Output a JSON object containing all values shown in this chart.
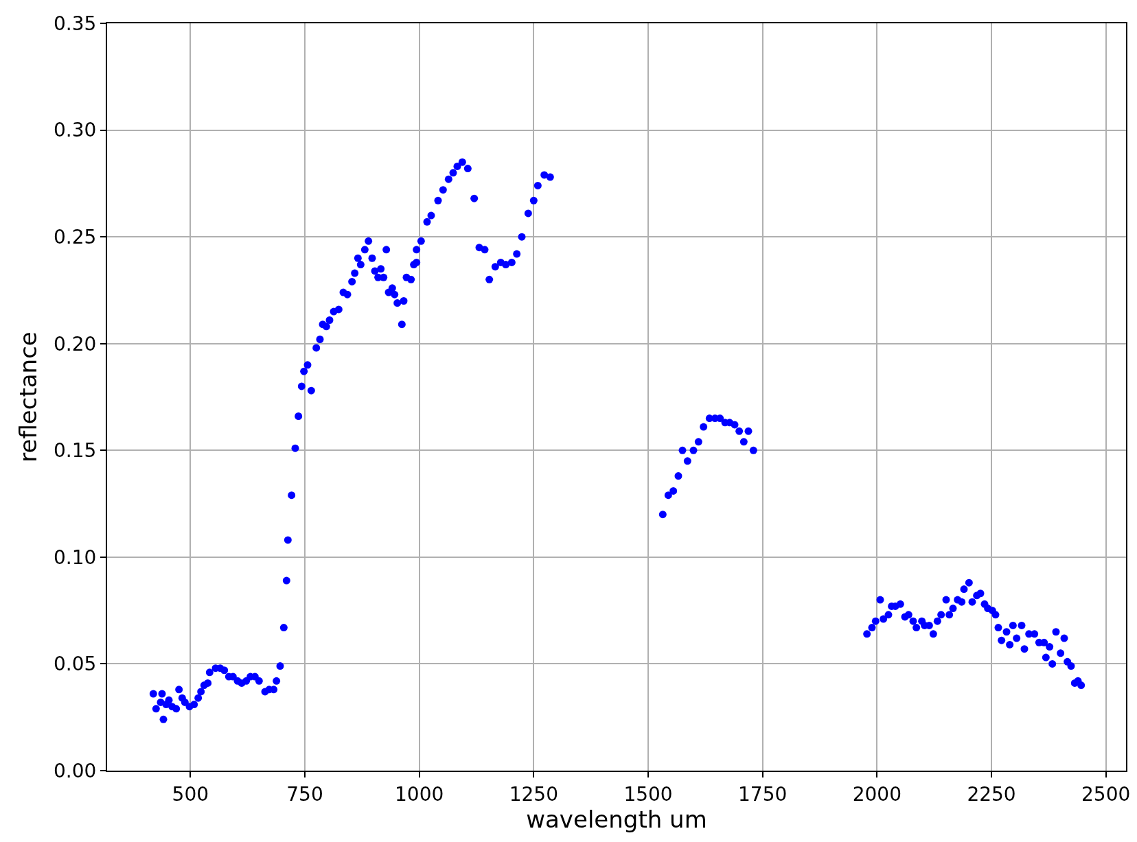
{
  "chart_data": {
    "type": "scatter",
    "xlabel": "wavelength um",
    "ylabel": "reflectance",
    "marker": "circle",
    "grid": true,
    "xlim": [
      318,
      2544
    ],
    "ylim": [
      0,
      0.35
    ],
    "xticks": [
      500,
      750,
      1000,
      1250,
      1500,
      1750,
      2000,
      2250,
      2500
    ],
    "yticks": [
      {
        "value": 0,
        "label": "0.00"
      },
      {
        "value": 0.05,
        "label": "0.05"
      },
      {
        "value": 0.1,
        "label": "0.10"
      },
      {
        "value": 0.15,
        "label": "0.15"
      },
      {
        "value": 0.2,
        "label": "0.20"
      },
      {
        "value": 0.25,
        "label": "0.25"
      },
      {
        "value": 0.3,
        "label": "0.30"
      },
      {
        "value": 0.35,
        "label": "0.35"
      }
    ],
    "series": [
      {
        "color": "#0000ff",
        "x": [
          419,
          425,
          435,
          438,
          441,
          447,
          453,
          460,
          469,
          475,
          482,
          488,
          498,
          508,
          517,
          523,
          530,
          538,
          542,
          555,
          565,
          574,
          584,
          593,
          603,
          612,
          622,
          631,
          641,
          650,
          663,
          672,
          682,
          688,
          696,
          704,
          710,
          713,
          721,
          729,
          736,
          743,
          748,
          756,
          764,
          775,
          783,
          789,
          797,
          804,
          813,
          824,
          834,
          843,
          853,
          859,
          866,
          872,
          881,
          889,
          897,
          903,
          910,
          916,
          922,
          928,
          933,
          941,
          946,
          952,
          962,
          966,
          972,
          982,
          988,
          994,
          994,
          1004,
          1017,
          1026,
          1041,
          1052,
          1064,
          1074,
          1083,
          1094,
          1106,
          1120,
          1131,
          1143,
          1153,
          1166,
          1178,
          1189,
          1202,
          1213,
          1224,
          1238,
          1250,
          1259,
          1273,
          1286,
          1532,
          1544,
          1555,
          1566,
          1575,
          1586,
          1599,
          1610,
          1621,
          1634,
          1646,
          1657,
          1668,
          1678,
          1689,
          1699,
          1709,
          1719,
          1730,
          1978,
          1989,
          1997,
          2007,
          2014,
          2025,
          2032,
          2040,
          2051,
          2061,
          2069,
          2079,
          2086,
          2098,
          2104,
          2114,
          2123,
          2132,
          2140,
          2151,
          2158,
          2166,
          2176,
          2185,
          2190,
          2201,
          2208,
          2218,
          2226,
          2235,
          2242,
          2252,
          2259,
          2265,
          2272,
          2283,
          2290,
          2297,
          2305,
          2316,
          2322,
          2332,
          2344,
          2354,
          2365,
          2377,
          2369,
          2383,
          2391,
          2401,
          2409,
          2416,
          2424,
          2432,
          2439,
          2446
        ],
        "values": [
          0.036,
          0.029,
          0.032,
          0.036,
          0.024,
          0.031,
          0.033,
          0.03,
          0.029,
          0.038,
          0.034,
          0.032,
          0.03,
          0.031,
          0.034,
          0.037,
          0.04,
          0.041,
          0.046,
          0.048,
          0.048,
          0.047,
          0.044,
          0.044,
          0.042,
          0.041,
          0.042,
          0.044,
          0.044,
          0.042,
          0.037,
          0.038,
          0.038,
          0.042,
          0.049,
          0.067,
          0.089,
          0.108,
          0.129,
          0.151,
          0.166,
          0.18,
          0.187,
          0.19,
          0.178,
          0.198,
          0.202,
          0.209,
          0.208,
          0.211,
          0.215,
          0.216,
          0.224,
          0.223,
          0.229,
          0.233,
          0.24,
          0.237,
          0.244,
          0.248,
          0.24,
          0.234,
          0.231,
          0.235,
          0.231,
          0.244,
          0.224,
          0.226,
          0.223,
          0.219,
          0.209,
          0.22,
          0.231,
          0.23,
          0.237,
          0.238,
          0.244,
          0.248,
          0.257,
          0.26,
          0.267,
          0.272,
          0.277,
          0.28,
          0.283,
          0.285,
          0.282,
          0.268,
          0.245,
          0.244,
          0.23,
          0.236,
          0.238,
          0.237,
          0.238,
          0.242,
          0.25,
          0.261,
          0.267,
          0.274,
          0.279,
          0.278,
          0.12,
          0.129,
          0.131,
          0.138,
          0.15,
          0.145,
          0.15,
          0.154,
          0.161,
          0.165,
          0.165,
          0.165,
          0.163,
          0.163,
          0.162,
          0.159,
          0.154,
          0.159,
          0.15,
          0.064,
          0.067,
          0.07,
          0.08,
          0.071,
          0.073,
          0.077,
          0.077,
          0.078,
          0.072,
          0.073,
          0.07,
          0.067,
          0.07,
          0.068,
          0.068,
          0.064,
          0.07,
          0.073,
          0.08,
          0.073,
          0.076,
          0.08,
          0.079,
          0.085,
          0.088,
          0.079,
          0.082,
          0.083,
          0.078,
          0.076,
          0.075,
          0.073,
          0.067,
          0.061,
          0.065,
          0.059,
          0.068,
          0.062,
          0.068,
          0.057,
          0.064,
          0.064,
          0.06,
          0.06,
          0.058,
          0.053,
          0.05,
          0.065,
          0.055,
          0.062,
          0.051,
          0.049,
          0.041,
          0.042,
          0.04
        ]
      }
    ]
  }
}
